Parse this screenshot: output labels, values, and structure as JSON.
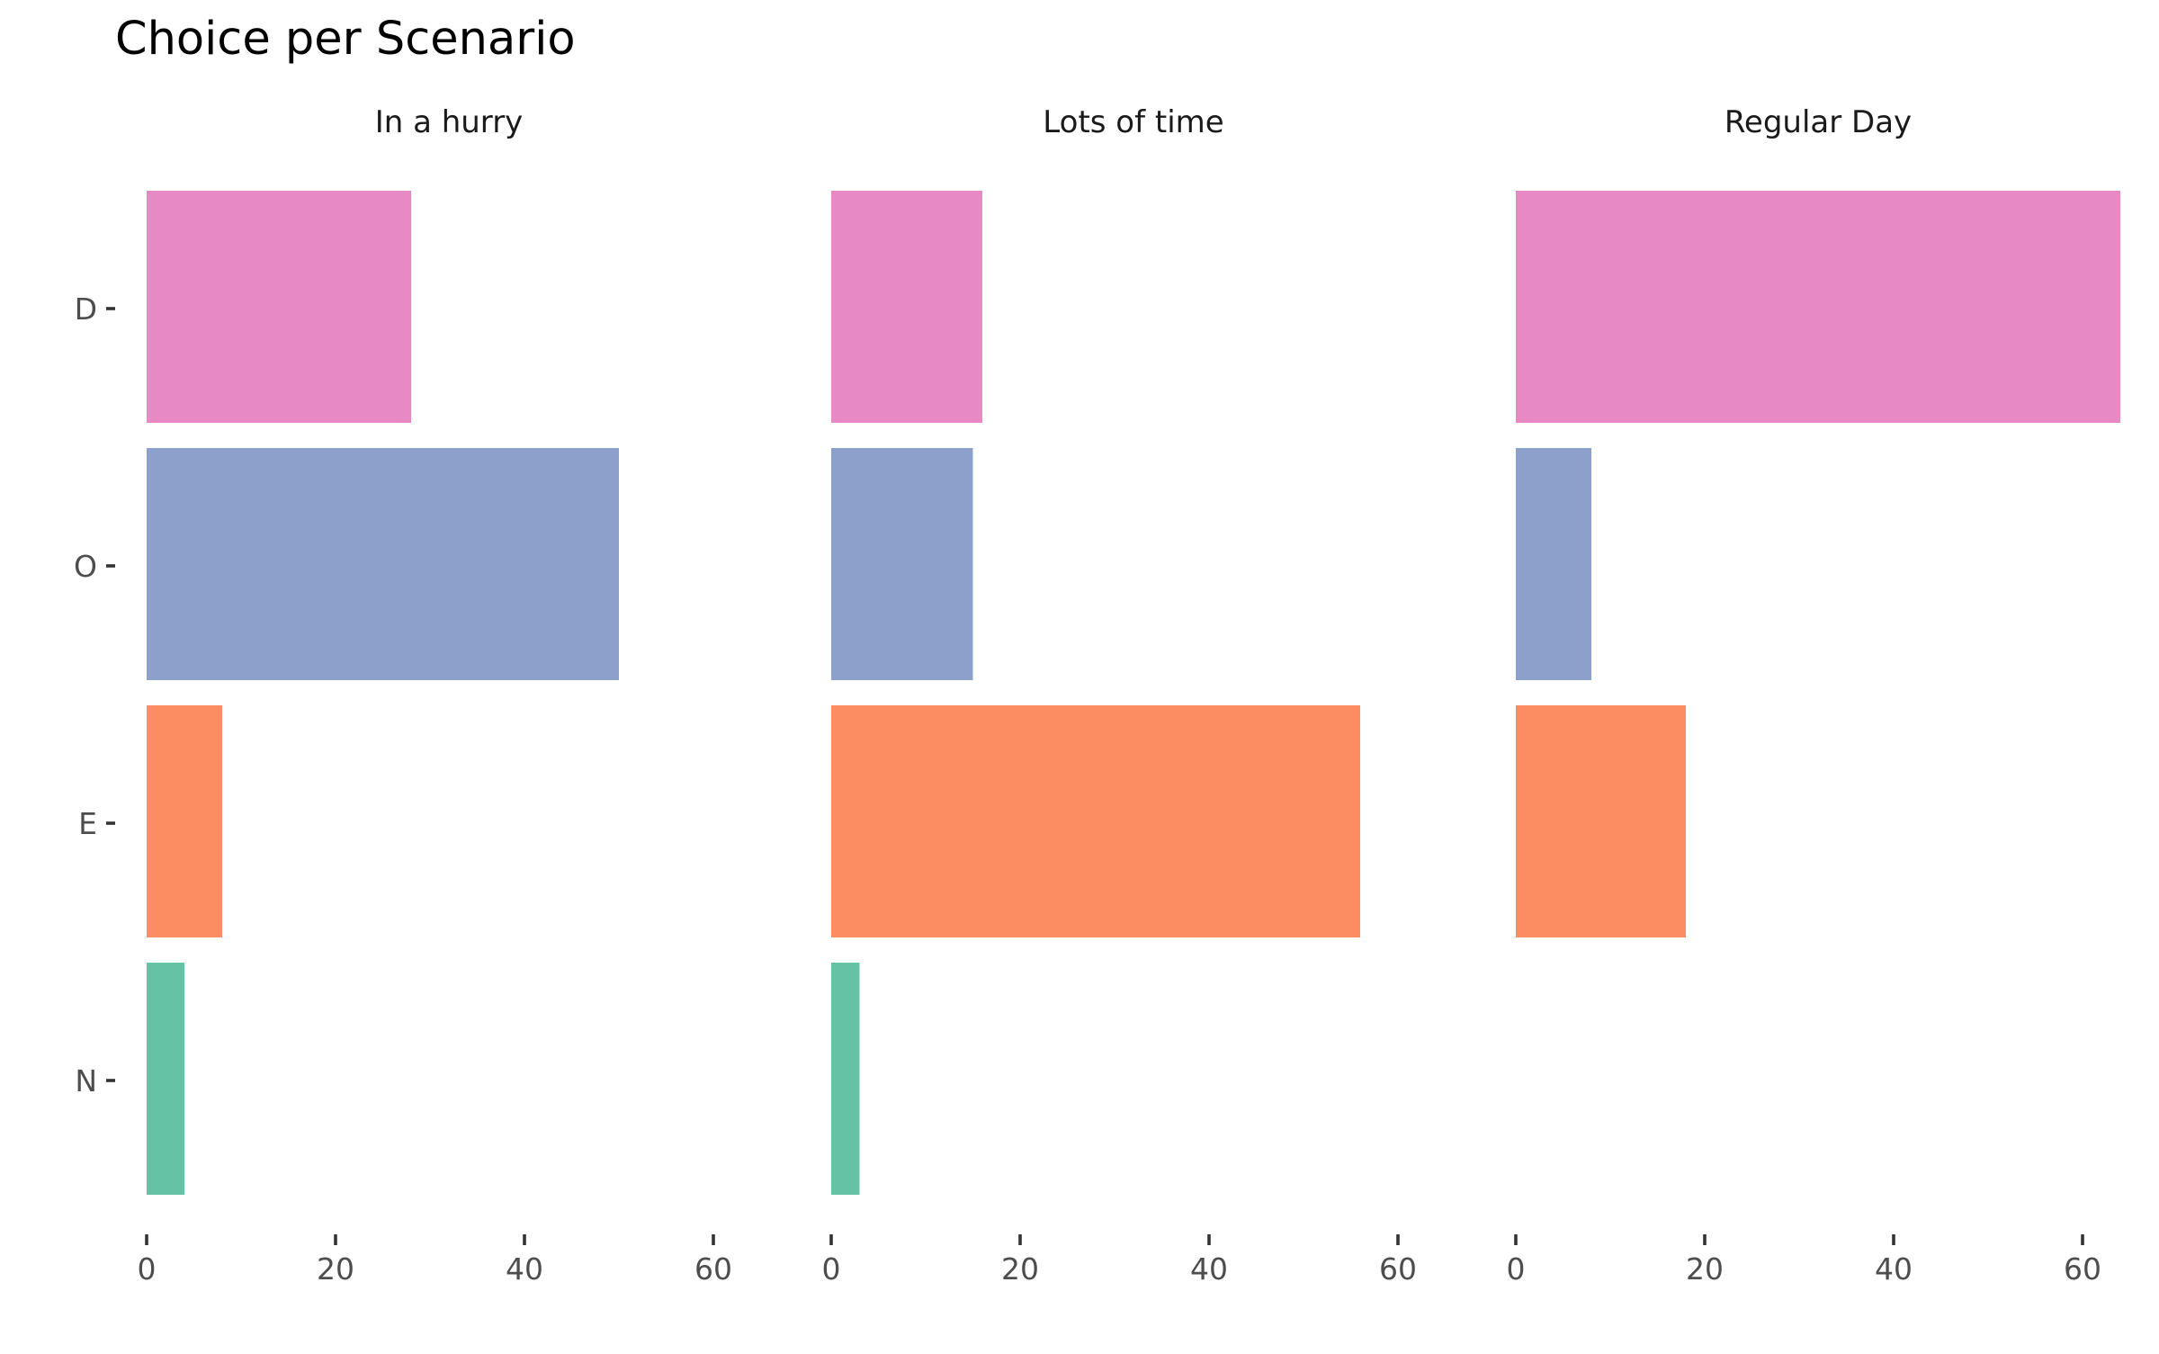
{
  "chart_data": {
    "type": "bar",
    "orientation": "horizontal",
    "title": "Choice per Scenario",
    "xlabel": "",
    "ylabel": "",
    "xlim": [
      0,
      64
    ],
    "x_ticks": [
      0,
      20,
      40,
      60
    ],
    "categories": [
      "D",
      "O",
      "E",
      "N"
    ],
    "colors": {
      "D": "#e78ac3",
      "O": "#8da0cb",
      "E": "#fc8d62",
      "N": "#66c2a5"
    },
    "grid": false,
    "legend": "none",
    "facets": [
      {
        "label": "In a hurry",
        "values": [
          28,
          50,
          8,
          4
        ]
      },
      {
        "label": "Lots of time",
        "values": [
          16,
          15,
          56,
          3
        ]
      },
      {
        "label": "Regular Day",
        "values": [
          64,
          8,
          18,
          0
        ]
      }
    ]
  }
}
